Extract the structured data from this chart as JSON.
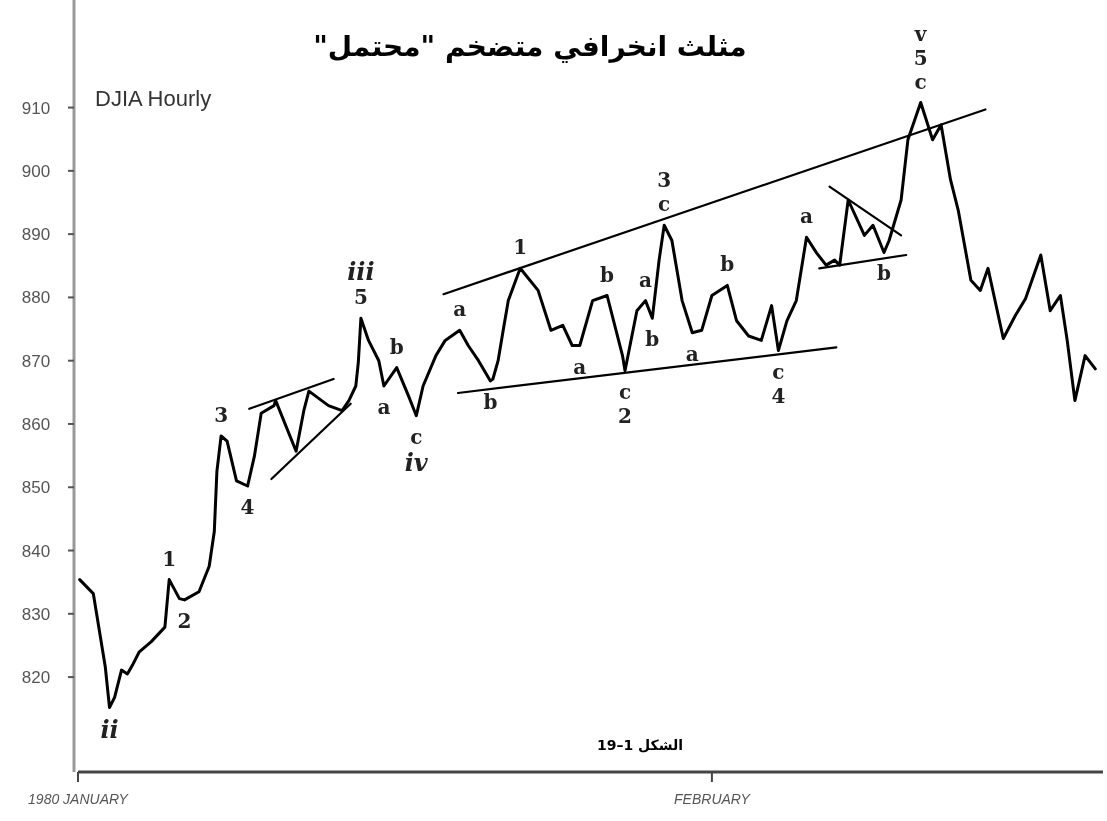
{
  "chart_data": {
    "type": "line",
    "title": "مثلث انخرافي متضخم \"محتمل\"",
    "subtitle": "DJIA Hourly",
    "xlim": [
      "1980-01-01T00:00",
      "1980-02-20T03:00"
    ],
    "xticks": [
      {
        "value": "1980-01-01",
        "label": "1980 JANUARY"
      },
      {
        "value": "1980-02-01",
        "label": "FEBRUARY"
      }
    ],
    "ylim": [
      805,
      927
    ],
    "yticks": [
      820,
      830,
      840,
      850,
      860,
      870,
      880,
      890,
      900,
      910
    ],
    "grid": false,
    "marker": "none",
    "line_style": "solid",
    "series": [
      {
        "color": "#000000",
        "x": [
          "1980-01-01T02:00",
          "1980-01-01T18:00",
          "1980-01-02T08:00",
          "1980-01-02T13:00",
          "1980-01-02T19:00",
          "1980-01-03T03:00",
          "1980-01-03T10:00",
          "1980-01-03T16:00",
          "1980-01-04T00:00",
          "1980-01-04T14:00",
          "1980-01-05T06:00",
          "1980-01-05T11:00",
          "1980-01-05T23:00",
          "1980-01-06T05:00",
          "1980-01-06T22:00",
          "1980-01-07T10:00",
          "1980-01-07T16:00",
          "1980-01-07T19:00",
          "1980-01-08T00:00",
          "1980-01-08T07:00",
          "1980-01-08T18:00",
          "1980-01-09T07:00",
          "1980-01-09T15:00",
          "1980-01-09T23:00",
          "1980-01-10T14:00",
          "1980-01-10T16:00",
          "1980-01-11T16:00",
          "1980-01-12T01:00",
          "1980-01-12T07:00",
          "1980-01-13T06:00",
          "1980-01-13T22:00",
          "1980-01-14T06:00",
          "1980-01-14T14:00",
          "1980-01-14T17:00",
          "1980-01-14T20:00",
          "1980-01-15T05:00",
          "1980-01-15T17:00",
          "1980-01-15T23:00",
          "1980-01-16T14:00",
          "1980-01-17T04:00",
          "1980-01-17T13:00",
          "1980-01-17T21:00",
          "1980-01-18T12:00",
          "1980-01-18T23:00",
          "1980-01-19T16:00",
          "1980-01-20T02:00",
          "1980-01-20T14:00",
          "1980-01-21T04:00",
          "1980-01-21T07:00",
          "1980-01-21T13:00",
          "1980-01-21T19:00",
          "1980-01-22T01:00",
          "1980-01-22T15:00",
          "1980-01-23T12:00",
          "1980-01-24T03:00",
          "1980-01-24T17:00",
          "1980-01-25T04:00",
          "1980-01-25T13:00",
          "1980-01-26T04:00",
          "1980-01-26T21:00",
          "1980-01-27T15:00",
          "1980-01-27T18:00",
          "1980-01-28T08:00",
          "1980-01-28T18:00",
          "1980-01-29T02:00",
          "1980-01-29T10:00",
          "1980-01-29T16:00",
          "1980-01-30T01:00",
          "1980-01-30T13:00",
          "1980-01-31T01:00",
          "1980-01-31T12:00",
          "1980-02-01T00:00",
          "1980-02-01T18:00",
          "1980-02-02T05:00",
          "1980-02-02T19:00",
          "1980-02-03T10:00",
          "1980-02-03T22:00",
          "1980-02-04T06:00",
          "1980-02-04T16:00",
          "1980-02-05T03:00",
          "1980-02-05T15:00",
          "1980-02-06T03:00",
          "1980-02-06T14:00",
          "1980-02-07T00:00",
          "1980-02-07T06:00",
          "1980-02-07T16:00",
          "1980-02-08T11:00",
          "1980-02-08T21:00",
          "1980-02-09T10:00",
          "1980-02-09T16:00",
          "1980-02-10T06:00",
          "1980-02-10T14:00",
          "1980-02-11T05:00",
          "1980-02-11T19:00",
          "1980-02-12T05:00",
          "1980-02-12T16:00",
          "1980-02-13T01:00",
          "1980-02-13T16:00",
          "1980-02-14T03:00",
          "1980-02-14T12:00",
          "1980-02-15T06:00",
          "1980-02-15T20:00",
          "1980-02-16T08:00",
          "1980-02-17T02:00",
          "1980-02-17T13:00",
          "1980-02-18T01:00",
          "1980-02-18T09:00",
          "1980-02-18T18:00",
          "1980-02-19T06:00",
          "1980-02-19T18:00"
        ],
        "values": [
          835.4,
          833.2,
          821.6,
          815.2,
          816.8,
          821.1,
          820.5,
          821.9,
          824.0,
          825.6,
          827.9,
          835.4,
          832.4,
          832.2,
          833.5,
          837.5,
          843.0,
          852.5,
          858.1,
          857.3,
          851.0,
          850.2,
          854.9,
          861.7,
          862.9,
          863.7,
          855.7,
          862.1,
          865.2,
          862.9,
          862.1,
          863.7,
          866.0,
          869.7,
          876.7,
          873.2,
          870.0,
          866.0,
          868.9,
          864.4,
          861.3,
          866.0,
          870.8,
          873.2,
          874.8,
          872.4,
          870.0,
          866.8,
          867.1,
          870.0,
          874.8,
          879.5,
          884.6,
          881.1,
          874.8,
          875.6,
          872.4,
          872.4,
          879.5,
          880.3,
          870.8,
          868.4,
          877.9,
          879.5,
          876.7,
          885.9,
          891.4,
          889.0,
          879.5,
          874.4,
          874.8,
          880.3,
          881.9,
          876.3,
          873.9,
          873.2,
          878.7,
          871.6,
          876.3,
          879.5,
          889.5,
          887.0,
          885.1,
          885.9,
          885.1,
          895.4,
          889.8,
          891.4,
          887.1,
          889.0,
          895.4,
          904.9,
          910.8,
          904.9,
          907.3,
          898.6,
          893.8,
          882.7,
          881.1,
          884.6,
          873.5,
          877.1,
          879.8,
          886.7,
          877.9,
          880.3,
          873.2,
          863.7,
          870.8,
          868.7
        ]
      },
      {
        "type": "line",
        "color": "#000000",
        "x": [
          "1980-01-18T21:00",
          "1980-02-14T09:00"
        ],
        "values": [
          880.5,
          909.7
        ]
      },
      {
        "type": "line",
        "color": "#000000",
        "x": [
          "1980-01-19T14:00",
          "1980-02-07T02:00"
        ],
        "values": [
          864.9,
          872.1
        ]
      },
      {
        "type": "line",
        "color": "#000000",
        "x": [
          "1980-01-09T09:00",
          "1980-01-13T12:00"
        ],
        "values": [
          862.4,
          867.1
        ]
      },
      {
        "type": "line",
        "color": "#000000",
        "x": [
          "1980-01-10T11:00",
          "1980-01-14T08:00"
        ],
        "values": [
          851.3,
          863.2
        ]
      },
      {
        "type": "line",
        "color": "#000000",
        "x": [
          "1980-02-06T18:00",
          "1980-02-10T06:00"
        ],
        "values": [
          897.5,
          889.8
        ]
      },
      {
        "type": "line",
        "color": "#000000",
        "x": [
          "1980-02-06T06:00",
          "1980-02-10T12:00"
        ],
        "values": [
          884.6,
          886.7
        ]
      }
    ],
    "annotations": [
      {
        "text": "ii",
        "x": "1980-01-02T13:00",
        "y": 815.2
      },
      {
        "text": "1",
        "x": "1980-01-05T11:00",
        "y": 835.4
      },
      {
        "text": "2",
        "x": "1980-01-06T05:00",
        "y": 832.2
      },
      {
        "text": "3",
        "x": "1980-01-08T00:00",
        "y": 858.1
      },
      {
        "text": "4",
        "x": "1980-01-09T07:00",
        "y": 850.2
      },
      {
        "text": "5",
        "x": "1980-01-14T20:00",
        "y": 876.7
      },
      {
        "text": "iii",
        "x": "1980-01-14T20:00",
        "y": 876.7
      },
      {
        "text": "a",
        "x": "1980-01-15T23:00",
        "y": 866.0
      },
      {
        "text": "b",
        "x": "1980-01-16T14:00",
        "y": 868.9
      },
      {
        "text": "c",
        "x": "1980-01-17T13:00",
        "y": 861.3
      },
      {
        "text": "iv",
        "x": "1980-01-17T13:00",
        "y": 861.3
      },
      {
        "text": "a",
        "x": "1980-01-19T16:00",
        "y": 874.8
      },
      {
        "text": "b",
        "x": "1980-01-21T04:00",
        "y": 866.8
      },
      {
        "text": "1",
        "x": "1980-01-22T15:00",
        "y": 884.6
      },
      {
        "text": "a",
        "x": "1980-01-25T13:00",
        "y": 872.4
      },
      {
        "text": "b",
        "x": "1980-01-26T21:00",
        "y": 880.3
      },
      {
        "text": "c",
        "x": "1980-01-27T18:00",
        "y": 868.4
      },
      {
        "text": "2",
        "x": "1980-01-27T18:00",
        "y": 868.4
      },
      {
        "text": "a",
        "x": "1980-01-28T18:00",
        "y": 879.5
      },
      {
        "text": "b",
        "x": "1980-01-29T02:00",
        "y": 876.7
      },
      {
        "text": "c",
        "x": "1980-01-29T16:00",
        "y": 891.4
      },
      {
        "text": "3",
        "x": "1980-01-29T16:00",
        "y": 891.4
      },
      {
        "text": "a",
        "x": "1980-01-31T01:00",
        "y": 874.4
      },
      {
        "text": "b",
        "x": "1980-02-01T18:00",
        "y": 881.9
      },
      {
        "text": "c",
        "x": "1980-02-04T06:00",
        "y": 871.6
      },
      {
        "text": "4",
        "x": "1980-02-04T06:00",
        "y": 871.6
      },
      {
        "text": "a",
        "x": "1980-02-05T15:00",
        "y": 889.5
      },
      {
        "text": "b",
        "x": "1980-02-09T10:00",
        "y": 887.1
      },
      {
        "text": "c",
        "x": "1980-02-11T05:00",
        "y": 910.8
      },
      {
        "text": "5",
        "x": "1980-02-11T05:00",
        "y": 910.8
      },
      {
        "text": "v",
        "x": "1980-02-11T05:00",
        "y": 910.8
      },
      "الشكل 1–19"
    ]
  }
}
